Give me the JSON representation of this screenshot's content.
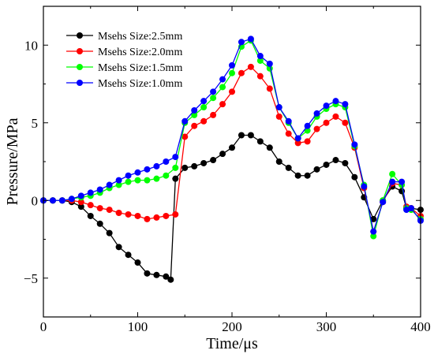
{
  "chart_data": {
    "type": "line",
    "xlabel": "Time/μs",
    "ylabel": "Pressure/MPa",
    "xlim": [
      0,
      400
    ],
    "ylim": [
      -7.5,
      12.5
    ],
    "xticks": [
      0,
      100,
      200,
      300,
      400
    ],
    "yticks": [
      -5,
      0,
      5,
      10
    ],
    "grid": false,
    "legend_position": "top-left",
    "series": [
      {
        "name": "Msehs Size:2.5mm",
        "color": "#000000",
        "points": [
          [
            0,
            0
          ],
          [
            10,
            0
          ],
          [
            20,
            0
          ],
          [
            30,
            -0.1
          ],
          [
            40,
            -0.4
          ],
          [
            50,
            -1
          ],
          [
            60,
            -1.5
          ],
          [
            70,
            -2.1
          ],
          [
            80,
            -3
          ],
          [
            90,
            -3.5
          ],
          [
            100,
            -4
          ],
          [
            110,
            -4.7
          ],
          [
            120,
            -4.8
          ],
          [
            130,
            -4.9
          ],
          [
            135,
            -5.1
          ],
          [
            140,
            1.4
          ],
          [
            150,
            2.1
          ],
          [
            160,
            2.2
          ],
          [
            170,
            2.4
          ],
          [
            180,
            2.6
          ],
          [
            190,
            3
          ],
          [
            200,
            3.4
          ],
          [
            210,
            4.2
          ],
          [
            220,
            4.2
          ],
          [
            230,
            3.8
          ],
          [
            240,
            3.4
          ],
          [
            250,
            2.5
          ],
          [
            260,
            2.1
          ],
          [
            270,
            1.6
          ],
          [
            280,
            1.6
          ],
          [
            290,
            2
          ],
          [
            300,
            2.3
          ],
          [
            310,
            2.6
          ],
          [
            320,
            2.4
          ],
          [
            330,
            1.5
          ],
          [
            340,
            0.2
          ],
          [
            350,
            -1.2
          ],
          [
            360,
            0
          ],
          [
            370,
            0.9
          ],
          [
            380,
            0.6
          ],
          [
            385,
            -0.5
          ],
          [
            390,
            -0.5
          ],
          [
            400,
            -0.6
          ]
        ]
      },
      {
        "name": "Msehs Size:2.0mm",
        "color": "#ff0000",
        "points": [
          [
            0,
            0
          ],
          [
            10,
            0
          ],
          [
            20,
            0
          ],
          [
            30,
            0
          ],
          [
            40,
            -0.1
          ],
          [
            50,
            -0.3
          ],
          [
            60,
            -0.5
          ],
          [
            70,
            -0.6
          ],
          [
            80,
            -0.8
          ],
          [
            90,
            -0.9
          ],
          [
            100,
            -1
          ],
          [
            110,
            -1.2
          ],
          [
            120,
            -1.1
          ],
          [
            130,
            -1
          ],
          [
            140,
            -0.9
          ],
          [
            150,
            4.1
          ],
          [
            160,
            4.8
          ],
          [
            170,
            5.1
          ],
          [
            180,
            5.5
          ],
          [
            190,
            6.2
          ],
          [
            200,
            7
          ],
          [
            210,
            8.2
          ],
          [
            220,
            8.6
          ],
          [
            230,
            8
          ],
          [
            240,
            7.2
          ],
          [
            250,
            5.4
          ],
          [
            260,
            4.3
          ],
          [
            270,
            3.7
          ],
          [
            280,
            3.8
          ],
          [
            290,
            4.6
          ],
          [
            300,
            5
          ],
          [
            310,
            5.4
          ],
          [
            320,
            5
          ],
          [
            330,
            3.4
          ],
          [
            340,
            0.8
          ],
          [
            350,
            -2
          ],
          [
            360,
            -0.1
          ],
          [
            370,
            1.1
          ],
          [
            380,
            1
          ],
          [
            385,
            -0.4
          ],
          [
            390,
            -0.5
          ],
          [
            400,
            -1
          ]
        ]
      },
      {
        "name": "Msehs Size:1.5mm",
        "color": "#00ff00",
        "points": [
          [
            0,
            0
          ],
          [
            10,
            0
          ],
          [
            20,
            0
          ],
          [
            30,
            0.1
          ],
          [
            40,
            0.2
          ],
          [
            50,
            0.3
          ],
          [
            60,
            0.5
          ],
          [
            70,
            0.8
          ],
          [
            80,
            1
          ],
          [
            90,
            1.2
          ],
          [
            100,
            1.3
          ],
          [
            110,
            1.3
          ],
          [
            120,
            1.4
          ],
          [
            130,
            1.6
          ],
          [
            140,
            2.1
          ],
          [
            150,
            5
          ],
          [
            160,
            5.5
          ],
          [
            170,
            6
          ],
          [
            180,
            6.6
          ],
          [
            190,
            7.3
          ],
          [
            200,
            8.2
          ],
          [
            210,
            9.9
          ],
          [
            220,
            10.3
          ],
          [
            230,
            9
          ],
          [
            240,
            8.5
          ],
          [
            250,
            6
          ],
          [
            260,
            5
          ],
          [
            270,
            4
          ],
          [
            280,
            4.5
          ],
          [
            290,
            5.4
          ],
          [
            300,
            5.9
          ],
          [
            310,
            6.2
          ],
          [
            320,
            6
          ],
          [
            330,
            3.5
          ],
          [
            340,
            1
          ],
          [
            350,
            -2.3
          ],
          [
            360,
            0
          ],
          [
            370,
            1.7
          ],
          [
            380,
            1
          ],
          [
            385,
            -0.5
          ],
          [
            390,
            -0.6
          ],
          [
            400,
            -1.2
          ]
        ]
      },
      {
        "name": "Msehs Size:1.0mm",
        "color": "#0000ff",
        "points": [
          [
            0,
            0
          ],
          [
            10,
            0
          ],
          [
            20,
            0
          ],
          [
            30,
            0.1
          ],
          [
            40,
            0.3
          ],
          [
            50,
            0.5
          ],
          [
            60,
            0.7
          ],
          [
            70,
            1
          ],
          [
            80,
            1.3
          ],
          [
            90,
            1.6
          ],
          [
            100,
            1.8
          ],
          [
            110,
            2
          ],
          [
            120,
            2.2
          ],
          [
            130,
            2.5
          ],
          [
            140,
            2.8
          ],
          [
            150,
            5.1
          ],
          [
            160,
            5.8
          ],
          [
            170,
            6.4
          ],
          [
            180,
            7
          ],
          [
            190,
            7.8
          ],
          [
            200,
            8.7
          ],
          [
            210,
            10.2
          ],
          [
            220,
            10.4
          ],
          [
            230,
            9.3
          ],
          [
            240,
            8.8
          ],
          [
            250,
            6
          ],
          [
            260,
            5.1
          ],
          [
            270,
            4
          ],
          [
            280,
            4.8
          ],
          [
            290,
            5.6
          ],
          [
            300,
            6.1
          ],
          [
            310,
            6.4
          ],
          [
            320,
            6.2
          ],
          [
            330,
            3.6
          ],
          [
            340,
            0.9
          ],
          [
            350,
            -2
          ],
          [
            360,
            -0.1
          ],
          [
            370,
            1.2
          ],
          [
            380,
            1.2
          ],
          [
            385,
            -0.6
          ],
          [
            390,
            -0.5
          ],
          [
            400,
            -1.3
          ]
        ]
      }
    ]
  }
}
